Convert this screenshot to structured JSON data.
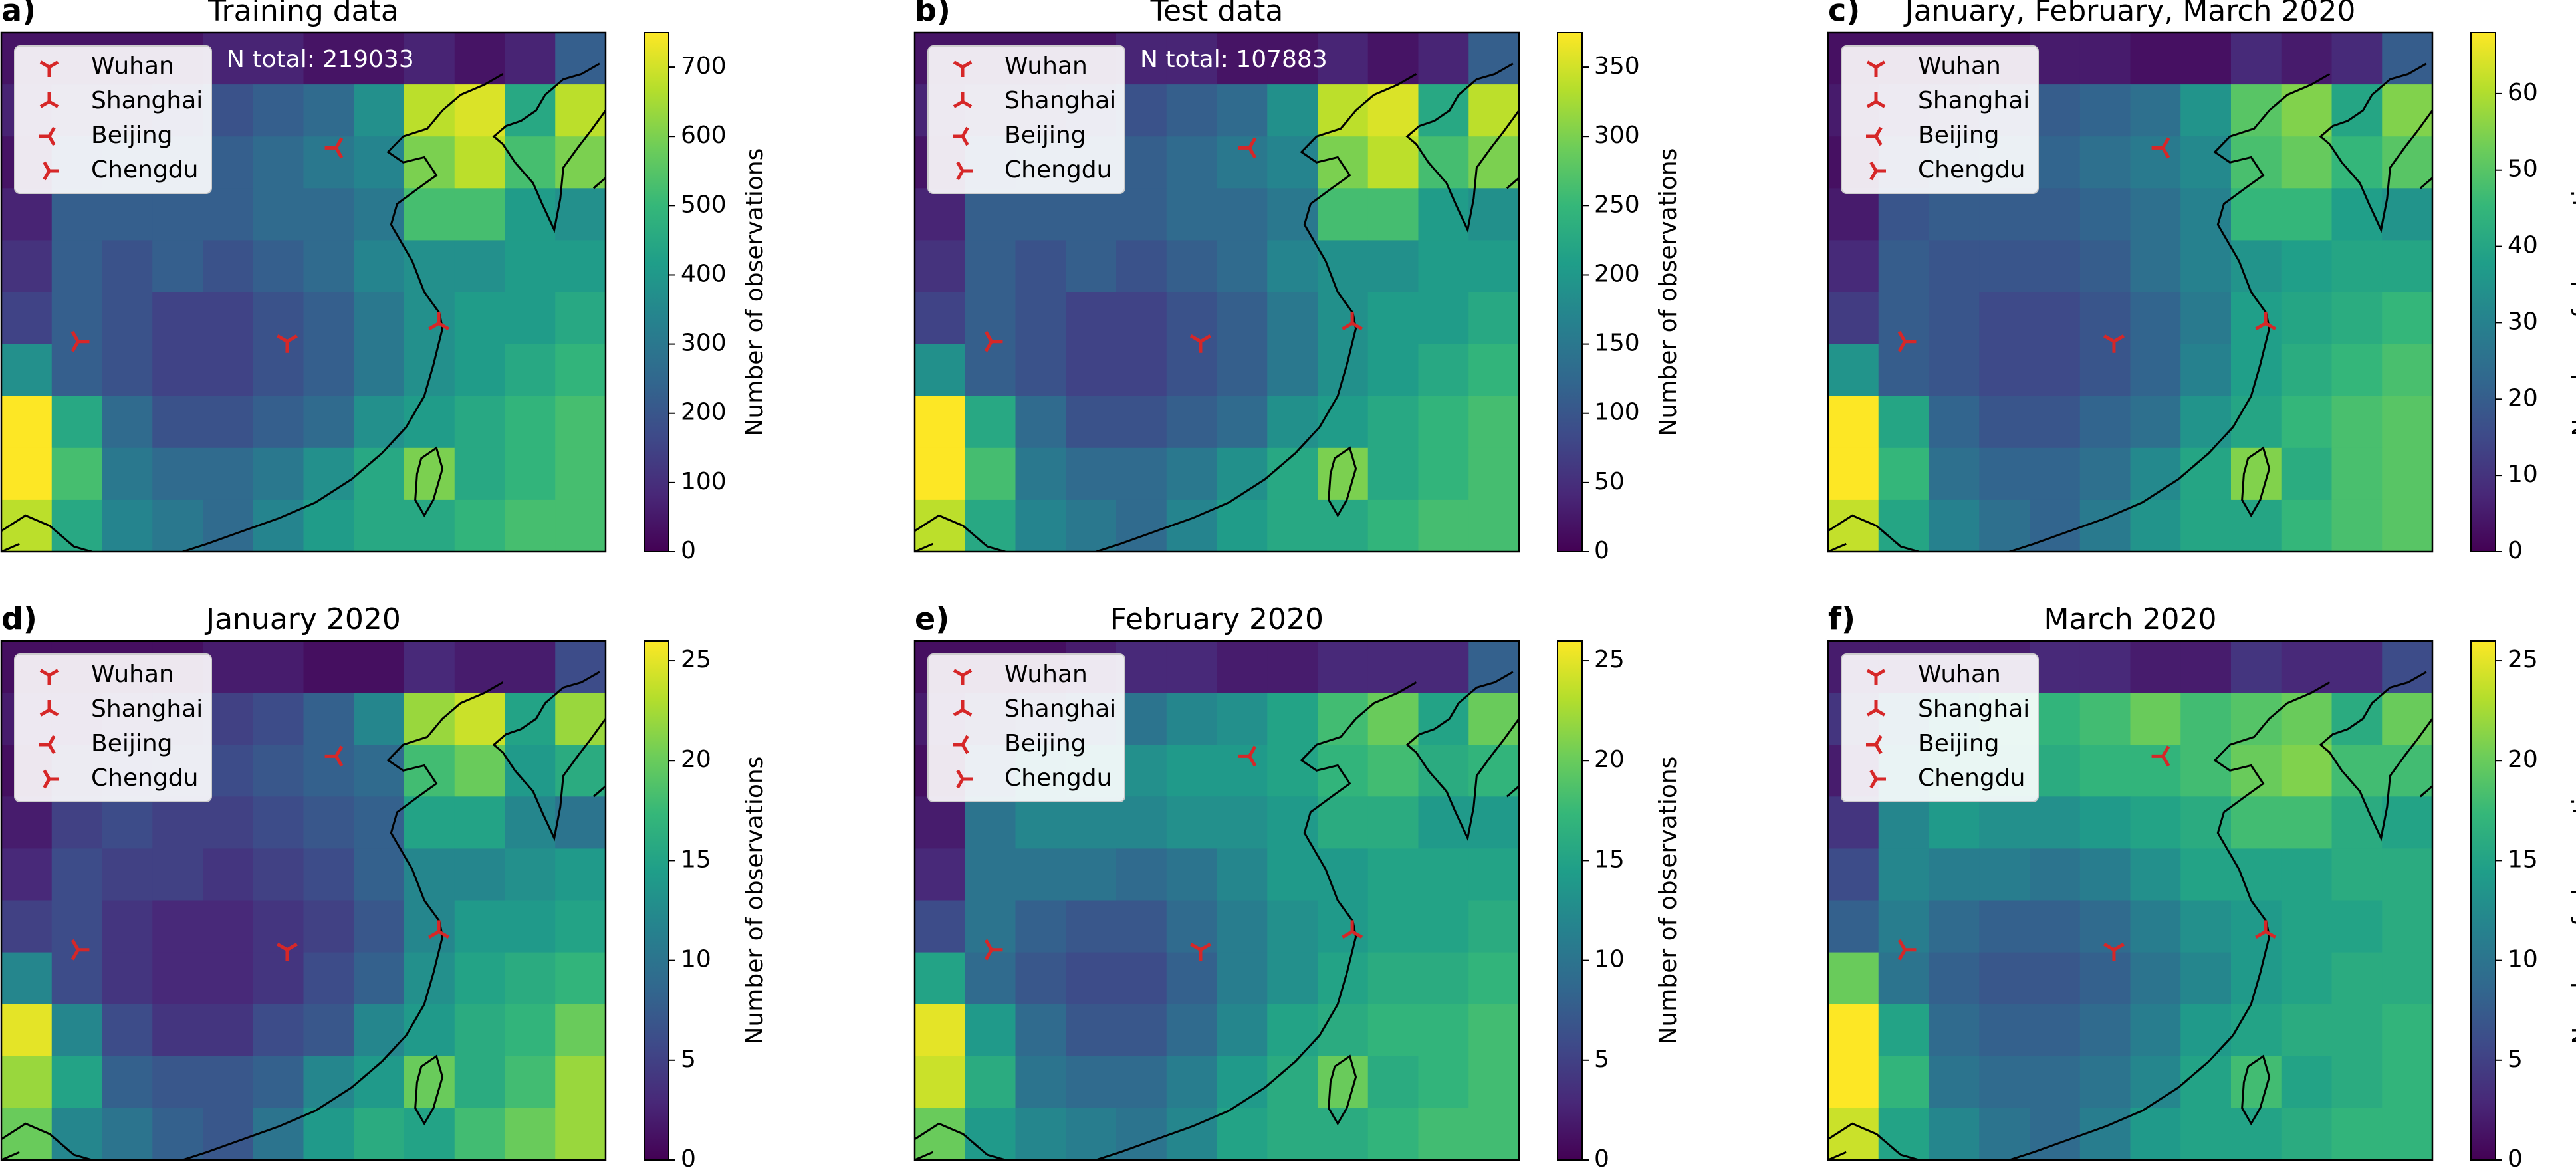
{
  "chart_data": [
    {
      "type": "heatmap",
      "panel_label": "a)",
      "title": "Training data",
      "annotation": "N total: 219033",
      "colormap": "viridis",
      "colorbar_label": "Number of observations",
      "legend": [
        "Wuhan",
        "Shanghai",
        "Beijing",
        "Chengdu"
      ],
      "zlim": [
        0,
        750
      ],
      "zticks": [
        0,
        100,
        200,
        300,
        400,
        500,
        600,
        700
      ],
      "z": [
        [
          40,
          40,
          40,
          40,
          75,
          75,
          40,
          40,
          75,
          40,
          75,
          225
        ],
        [
          75,
          110,
          110,
          150,
          190,
          225,
          260,
          375,
          675,
          710,
          450,
          675
        ],
        [
          40,
          190,
          225,
          225,
          225,
          260,
          300,
          340,
          600,
          675,
          525,
          600
        ],
        [
          75,
          225,
          225,
          225,
          225,
          260,
          260,
          300,
          525,
          525,
          410,
          375
        ],
        [
          110,
          225,
          190,
          225,
          190,
          225,
          260,
          340,
          375,
          375,
          410,
          410
        ],
        [
          150,
          225,
          190,
          150,
          150,
          190,
          225,
          300,
          375,
          410,
          410,
          450
        ],
        [
          375,
          225,
          190,
          150,
          150,
          190,
          225,
          300,
          375,
          410,
          450,
          490
        ],
        [
          750,
          450,
          260,
          190,
          190,
          225,
          260,
          375,
          410,
          450,
          490,
          525
        ],
        [
          750,
          525,
          300,
          260,
          260,
          300,
          375,
          450,
          600,
          450,
          490,
          525
        ],
        [
          675,
          450,
          340,
          300,
          260,
          340,
          410,
          450,
          450,
          490,
          525,
          525
        ]
      ]
    },
    {
      "type": "heatmap",
      "panel_label": "b)",
      "title": "Test data",
      "annotation": "N total: 107883",
      "colormap": "viridis",
      "colorbar_label": "Number of observations",
      "legend": [
        "Wuhan",
        "Shanghai",
        "Beijing",
        "Chengdu"
      ],
      "zlim": [
        0,
        375
      ],
      "zticks": [
        0,
        50,
        100,
        150,
        200,
        250,
        300,
        350
      ],
      "z": [
        [
          20,
          20,
          20,
          20,
          38,
          38,
          20,
          20,
          38,
          20,
          38,
          112
        ],
        [
          38,
          55,
          55,
          75,
          95,
          112,
          130,
          188,
          338,
          355,
          225,
          338
        ],
        [
          20,
          95,
          112,
          112,
          112,
          130,
          150,
          170,
          300,
          338,
          262,
          300
        ],
        [
          38,
          112,
          112,
          112,
          112,
          130,
          130,
          150,
          262,
          262,
          205,
          188
        ],
        [
          55,
          112,
          95,
          112,
          95,
          112,
          130,
          170,
          188,
          188,
          205,
          205
        ],
        [
          75,
          112,
          95,
          75,
          75,
          95,
          112,
          150,
          188,
          205,
          205,
          225
        ],
        [
          188,
          112,
          95,
          75,
          75,
          95,
          112,
          150,
          188,
          205,
          225,
          245
        ],
        [
          375,
          225,
          130,
          95,
          95,
          112,
          130,
          188,
          205,
          225,
          245,
          262
        ],
        [
          375,
          262,
          150,
          130,
          130,
          150,
          188,
          225,
          300,
          225,
          245,
          262
        ],
        [
          338,
          225,
          170,
          150,
          130,
          170,
          205,
          225,
          225,
          245,
          262,
          262
        ]
      ]
    },
    {
      "type": "heatmap",
      "panel_label": "c)",
      "title": "January, February, March 2020",
      "colormap": "viridis",
      "colorbar_label": "Number of observations",
      "legend": [
        "Wuhan",
        "Shanghai",
        "Beijing",
        "Chengdu"
      ],
      "zlim": [
        0,
        68
      ],
      "zticks": [
        0,
        10,
        20,
        30,
        40,
        50,
        60
      ],
      "z": [
        [
          3,
          3,
          3,
          3,
          5,
          5,
          3,
          3,
          8,
          5,
          8,
          20
        ],
        [
          5,
          8,
          10,
          15,
          20,
          22,
          25,
          35,
          50,
          55,
          40,
          55
        ],
        [
          3,
          15,
          20,
          22,
          22,
          25,
          28,
          32,
          48,
          52,
          45,
          50
        ],
        [
          5,
          18,
          20,
          20,
          20,
          22,
          25,
          30,
          45,
          45,
          38,
          35
        ],
        [
          8,
          20,
          18,
          18,
          18,
          20,
          25,
          30,
          35,
          38,
          40,
          40
        ],
        [
          12,
          20,
          18,
          15,
          15,
          18,
          22,
          28,
          38,
          40,
          42,
          45
        ],
        [
          35,
          20,
          18,
          15,
          15,
          18,
          22,
          30,
          38,
          42,
          45,
          48
        ],
        [
          68,
          40,
          22,
          18,
          18,
          22,
          25,
          35,
          40,
          45,
          48,
          50
        ],
        [
          68,
          45,
          25,
          22,
          22,
          25,
          32,
          40,
          55,
          42,
          48,
          50
        ],
        [
          62,
          40,
          30,
          25,
          22,
          28,
          35,
          40,
          40,
          45,
          48,
          50
        ]
      ]
    },
    {
      "type": "heatmap",
      "panel_label": "d)",
      "title": "January 2020",
      "colormap": "viridis",
      "colorbar_label": "Number of observations",
      "legend": [
        "Wuhan",
        "Shanghai",
        "Beijing",
        "Chengdu"
      ],
      "zlim": [
        0,
        26
      ],
      "zticks": [
        0,
        5,
        10,
        15,
        20,
        25
      ],
      "z": [
        [
          1,
          1,
          1,
          1,
          2,
          2,
          1,
          1,
          3,
          2,
          2,
          6
        ],
        [
          2,
          2,
          3,
          4,
          5,
          6,
          8,
          12,
          22,
          24,
          15,
          22
        ],
        [
          1,
          4,
          5,
          6,
          6,
          7,
          8,
          9,
          18,
          20,
          14,
          16
        ],
        [
          2,
          5,
          6,
          5,
          5,
          6,
          7,
          8,
          15,
          15,
          12,
          10
        ],
        [
          3,
          6,
          5,
          5,
          4,
          5,
          6,
          8,
          12,
          12,
          13,
          14
        ],
        [
          5,
          6,
          4,
          3,
          3,
          4,
          5,
          7,
          12,
          14,
          14,
          15
        ],
        [
          12,
          6,
          4,
          3,
          3,
          4,
          6,
          8,
          13,
          15,
          16,
          17
        ],
        [
          25,
          12,
          6,
          4,
          4,
          6,
          7,
          12,
          14,
          16,
          17,
          20
        ],
        [
          22,
          15,
          8,
          7,
          7,
          8,
          12,
          14,
          20,
          16,
          18,
          22
        ],
        [
          20,
          12,
          10,
          8,
          7,
          10,
          14,
          16,
          15,
          18,
          20,
          22
        ]
      ]
    },
    {
      "type": "heatmap",
      "panel_label": "e)",
      "title": "February 2020",
      "colormap": "viridis",
      "colorbar_label": "Number of observations",
      "legend": [
        "Wuhan",
        "Shanghai",
        "Beijing",
        "Chengdu"
      ],
      "zlim": [
        0,
        26
      ],
      "zticks": [
        0,
        5,
        10,
        15,
        20,
        25
      ],
      "z": [
        [
          1,
          1,
          1,
          2,
          3,
          3,
          2,
          2,
          3,
          3,
          3,
          8
        ],
        [
          2,
          4,
          6,
          8,
          10,
          12,
          13,
          15,
          18,
          20,
          15,
          20
        ],
        [
          1,
          8,
          12,
          13,
          13,
          14,
          14,
          15,
          17,
          18,
          16,
          17
        ],
        [
          2,
          10,
          12,
          12,
          12,
          13,
          13,
          14,
          16,
          16,
          14,
          14
        ],
        [
          3,
          10,
          10,
          10,
          9,
          10,
          12,
          14,
          14,
          15,
          15,
          15
        ],
        [
          6,
          10,
          8,
          7,
          7,
          9,
          11,
          13,
          14,
          15,
          15,
          16
        ],
        [
          15,
          9,
          7,
          6,
          6,
          8,
          11,
          13,
          15,
          16,
          16,
          17
        ],
        [
          25,
          14,
          9,
          7,
          7,
          9,
          12,
          15,
          16,
          17,
          17,
          18
        ],
        [
          24,
          16,
          10,
          9,
          9,
          11,
          14,
          16,
          20,
          16,
          17,
          18
        ],
        [
          20,
          14,
          12,
          11,
          10,
          12,
          15,
          16,
          16,
          17,
          18,
          18
        ]
      ]
    },
    {
      "type": "heatmap",
      "panel_label": "f)",
      "title": "March 2020",
      "colormap": "viridis",
      "colorbar_label": "Number of observations",
      "legend": [
        "Wuhan",
        "Shanghai",
        "Beijing",
        "Chengdu"
      ],
      "zlim": [
        0,
        26
      ],
      "zticks": [
        0,
        5,
        10,
        15,
        20,
        25
      ],
      "z": [
        [
          2,
          2,
          2,
          2,
          3,
          3,
          2,
          2,
          4,
          3,
          3,
          6
        ],
        [
          4,
          10,
          14,
          16,
          17,
          18,
          20,
          18,
          19,
          20,
          16,
          20
        ],
        [
          2,
          12,
          15,
          15,
          16,
          17,
          17,
          18,
          20,
          21,
          18,
          18
        ],
        [
          4,
          12,
          14,
          13,
          13,
          14,
          15,
          16,
          18,
          18,
          16,
          15
        ],
        [
          6,
          12,
          11,
          11,
          10,
          11,
          13,
          15,
          15,
          15,
          16,
          16
        ],
        [
          8,
          11,
          9,
          8,
          8,
          9,
          11,
          13,
          14,
          15,
          15,
          16
        ],
        [
          20,
          10,
          8,
          7,
          7,
          8,
          10,
          12,
          14,
          15,
          16,
          16
        ],
        [
          26,
          15,
          9,
          8,
          8,
          9,
          11,
          14,
          15,
          16,
          16,
          17
        ],
        [
          26,
          17,
          10,
          9,
          9,
          10,
          12,
          15,
          18,
          15,
          16,
          17
        ],
        [
          24,
          15,
          12,
          10,
          9,
          11,
          14,
          15,
          15,
          16,
          17,
          17
        ]
      ]
    }
  ]
}
